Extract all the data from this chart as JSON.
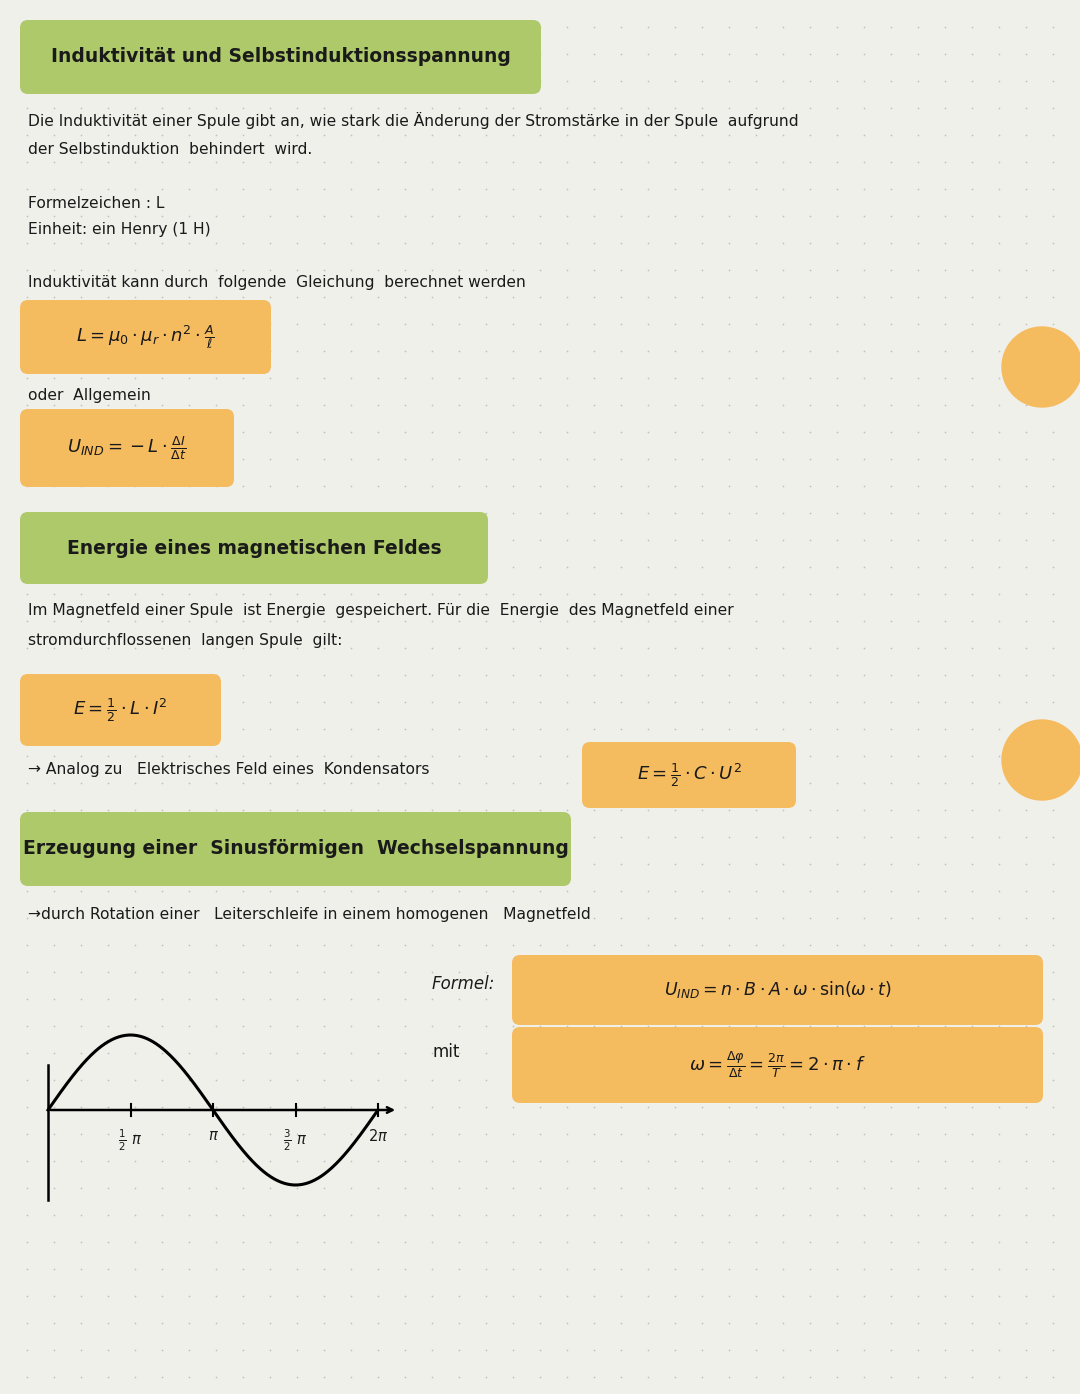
{
  "bg_color": "#f0f0eb",
  "dot_color": "#c0c0be",
  "text_color": "#1a1a1a",
  "green_box_color": "#aec96a",
  "orange_box_color": "#f5bb5f",
  "orange_circle_color": "#f5bb5f",
  "s1_title": "Induktivität und Selbstinduktionsspannung",
  "s1_body1_l1": "Die Induktivität einer Spule gibt an, wie stark die Änderung der Stromstärke in der Spule  aufgrund",
  "s1_body1_l2": "der Selbstinduktion  behindert  wird.",
  "s1_lbl1": "Formelzeichen : L",
  "s1_lbl2": "Einheit: ein Henry (1 H)",
  "s1_body2": "Induktivität kann durch  folgende  Gleichung  berechnet werden",
  "s2_title": "Energie eines magnetischen Feldes",
  "s2_body_l1": "Im Magnetfeld einer Spule  ist Energie  gespeichert. Für die  Energie  des Magnetfeld einer",
  "s2_body_l2": "stromdurchflossenen  langen Spule  gilt:",
  "s2_analog": "→ Analog zu   Elektrisches Feld eines  Kondensators",
  "s3_title": "Erzeugung einer  Sinusförmigen  Wechselspannung",
  "s3_body": "→durch Rotation einer   Leiterschleife in einem homogenen   Magnetfeld",
  "formel_label": "Formel:",
  "mit_label": "mit"
}
